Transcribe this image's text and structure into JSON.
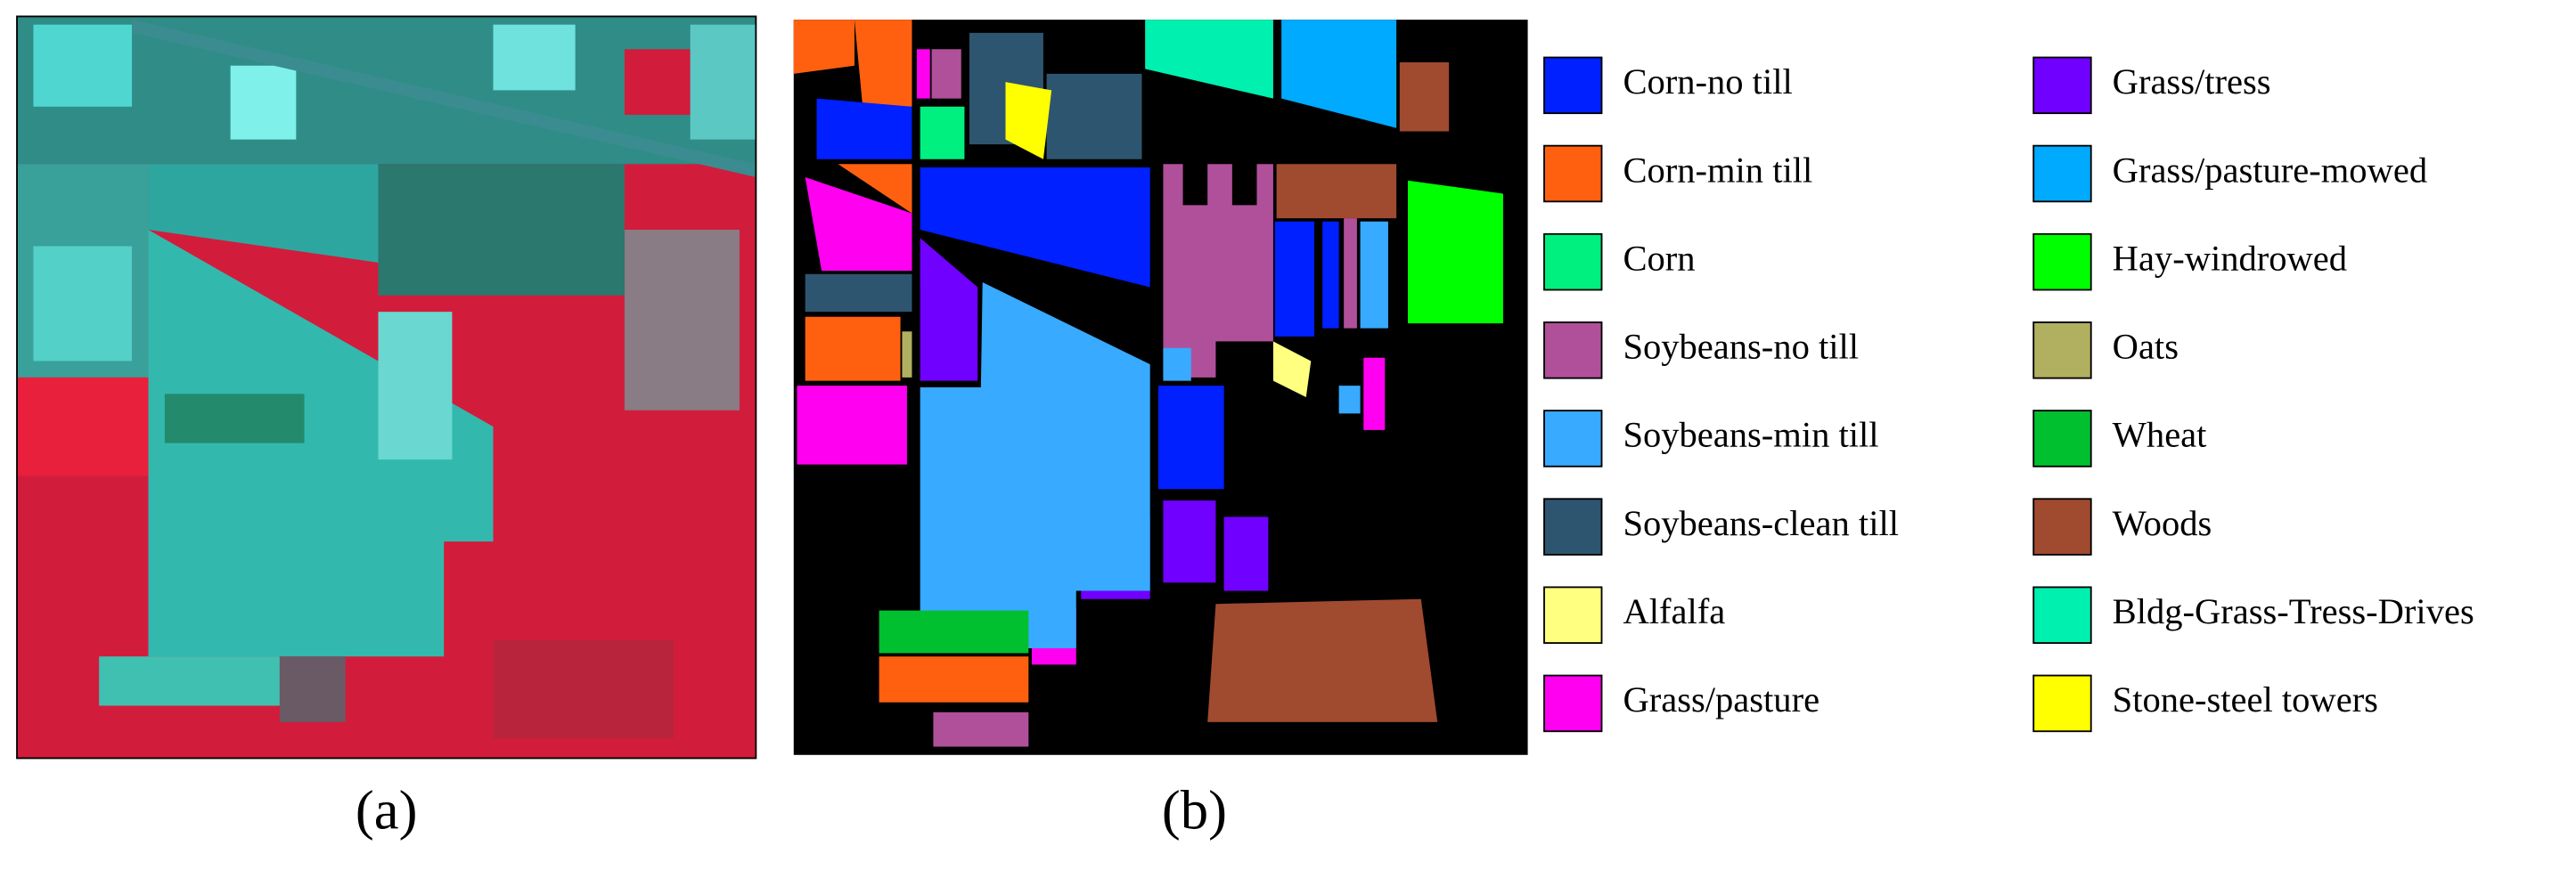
{
  "figure": {
    "panels": [
      {
        "label": "(a)"
      },
      {
        "label": "(b)"
      }
    ],
    "legend": [
      {
        "name": "Corn-no till",
        "color": "#0020ff"
      },
      {
        "name": "Corn-min till",
        "color": "#ff6010"
      },
      {
        "name": "Corn",
        "color": "#00f080"
      },
      {
        "name": "Soybeans-no till",
        "color": "#b0509a"
      },
      {
        "name": "Soybeans-min till",
        "color": "#38aaff"
      },
      {
        "name": "Soybeans-clean till",
        "color": "#2e5570"
      },
      {
        "name": "Alfalfa",
        "color": "#ffff80"
      },
      {
        "name": "Grass/pasture",
        "color": "#ff00f0"
      },
      {
        "name": "Grass/tress",
        "color": "#7000ff"
      },
      {
        "name": "Grass/pasture-mowed",
        "color": "#00aaff"
      },
      {
        "name": "Hay-windrowed",
        "color": "#00ff00"
      },
      {
        "name": "Oats",
        "color": "#b0b060"
      },
      {
        "name": "Wheat",
        "color": "#00c030"
      },
      {
        "name": "Woods",
        "color": "#a04a30"
      },
      {
        "name": "Bldg-Grass-Tress-Drives",
        "color": "#00f0b0"
      },
      {
        "name": "Stone-steel towers",
        "color": "#ffff00"
      }
    ]
  }
}
